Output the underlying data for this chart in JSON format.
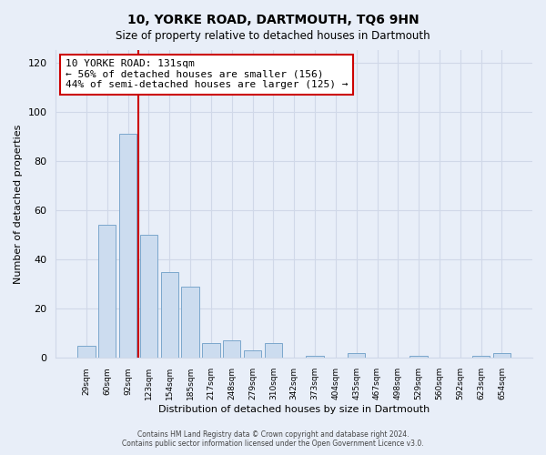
{
  "title": "10, YORKE ROAD, DARTMOUTH, TQ6 9HN",
  "subtitle": "Size of property relative to detached houses in Dartmouth",
  "xlabel": "Distribution of detached houses by size in Dartmouth",
  "ylabel": "Number of detached properties",
  "bar_labels": [
    "29sqm",
    "60sqm",
    "92sqm",
    "123sqm",
    "154sqm",
    "185sqm",
    "217sqm",
    "248sqm",
    "279sqm",
    "310sqm",
    "342sqm",
    "373sqm",
    "404sqm",
    "435sqm",
    "467sqm",
    "498sqm",
    "529sqm",
    "560sqm",
    "592sqm",
    "623sqm",
    "654sqm"
  ],
  "bar_values": [
    5,
    54,
    91,
    50,
    35,
    29,
    6,
    7,
    3,
    6,
    0,
    1,
    0,
    2,
    0,
    0,
    1,
    0,
    0,
    1,
    2
  ],
  "bar_color": "#ccdcef",
  "bar_edge_color": "#7ba7cc",
  "ylim": [
    0,
    125
  ],
  "yticks": [
    0,
    20,
    40,
    60,
    80,
    100,
    120
  ],
  "vline_x_index": 2.5,
  "vline_color": "#cc0000",
  "annotation_title": "10 YORKE ROAD: 131sqm",
  "annotation_line1": "← 56% of detached houses are smaller (156)",
  "annotation_line2": "44% of semi-detached houses are larger (125) →",
  "annotation_box_color": "#ffffff",
  "annotation_box_edge": "#cc0000",
  "footer1": "Contains HM Land Registry data © Crown copyright and database right 2024.",
  "footer2": "Contains public sector information licensed under the Open Government Licence v3.0.",
  "background_color": "#e8eef8",
  "plot_background": "#e8eef8",
  "grid_color": "#d0d8e8"
}
